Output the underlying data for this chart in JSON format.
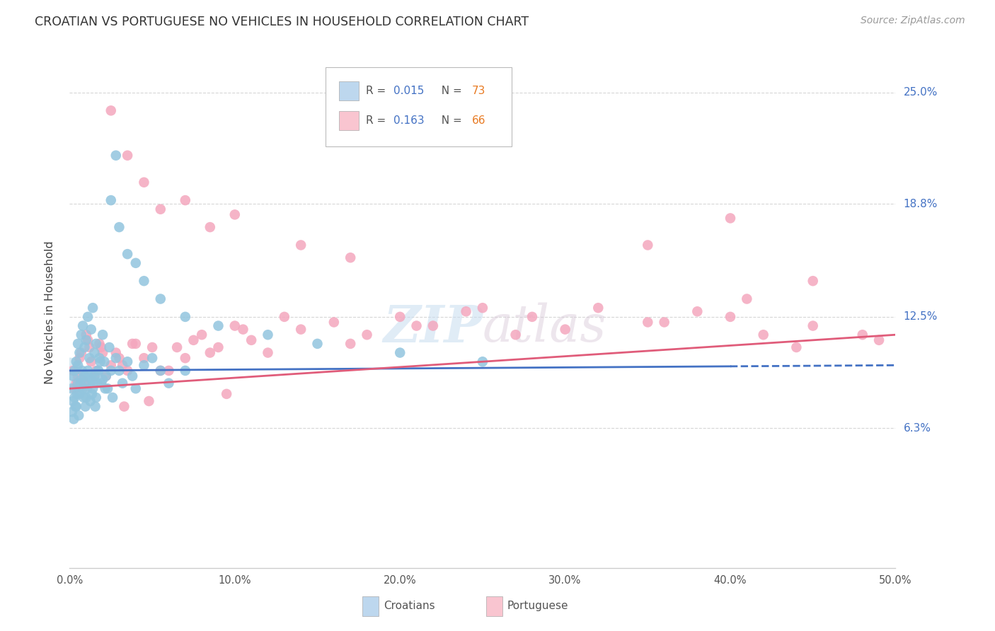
{
  "title": "CROATIAN VS PORTUGUESE NO VEHICLES IN HOUSEHOLD CORRELATION CHART",
  "source": "Source: ZipAtlas.com",
  "ylabel": "No Vehicles in Household",
  "ytick_labels": [
    "6.3%",
    "12.5%",
    "18.8%",
    "25.0%"
  ],
  "ytick_values": [
    6.3,
    12.5,
    18.8,
    25.0
  ],
  "xlim": [
    0.0,
    50.0
  ],
  "ylim": [
    -1.5,
    27.0
  ],
  "watermark": "ZIPatlas",
  "croatian_color": "#92C5DE",
  "portuguese_color": "#F4A7BE",
  "trend_croatian_color": "#4472C4",
  "trend_portuguese_color": "#E05C7A",
  "legend_box_blue": "#BDD7EE",
  "legend_box_pink": "#F9C5D0",
  "croatians_x": [
    0.1,
    0.2,
    0.2,
    0.3,
    0.3,
    0.4,
    0.4,
    0.5,
    0.5,
    0.5,
    0.6,
    0.6,
    0.7,
    0.7,
    0.8,
    0.8,
    0.9,
    0.9,
    1.0,
    1.0,
    1.1,
    1.1,
    1.2,
    1.2,
    1.3,
    1.3,
    1.4,
    1.4,
    1.5,
    1.5,
    1.6,
    1.6,
    1.7,
    1.8,
    1.9,
    2.0,
    2.0,
    2.1,
    2.2,
    2.3,
    2.4,
    2.5,
    2.6,
    2.8,
    3.0,
    3.2,
    3.5,
    3.8,
    4.0,
    4.5,
    5.0,
    5.5,
    6.0,
    7.0,
    0.15,
    0.25,
    0.35,
    0.45,
    0.55,
    0.65,
    0.75,
    0.85,
    0.95,
    1.05,
    1.15,
    1.25,
    1.35,
    1.45,
    1.55,
    1.65,
    1.75,
    1.85,
    2.15
  ],
  "croatians_y": [
    8.5,
    7.8,
    9.2,
    8.0,
    9.5,
    7.5,
    10.0,
    8.8,
    9.8,
    11.0,
    8.2,
    10.5,
    9.0,
    11.5,
    8.5,
    12.0,
    9.2,
    10.8,
    8.0,
    11.2,
    9.5,
    12.5,
    8.8,
    10.2,
    9.0,
    11.8,
    8.5,
    13.0,
    9.2,
    10.5,
    8.0,
    11.0,
    9.5,
    10.2,
    8.8,
    9.0,
    11.5,
    10.0,
    9.2,
    8.5,
    10.8,
    9.5,
    8.0,
    10.2,
    9.5,
    8.8,
    10.0,
    9.2,
    8.5,
    9.8,
    10.2,
    9.5,
    8.8,
    9.5,
    7.2,
    6.8,
    7.5,
    8.2,
    7.0,
    8.8,
    9.5,
    8.0,
    7.5,
    8.5,
    9.2,
    7.8,
    8.2,
    9.0,
    7.5,
    8.8,
    9.5,
    10.0,
    8.5
  ],
  "croatians_outliers_x": [
    2.8,
    2.5,
    3.0,
    3.5,
    4.0,
    4.5,
    5.5,
    7.0,
    9.0,
    12.0,
    15.0,
    20.0,
    25.0
  ],
  "croatians_outliers_y": [
    21.5,
    19.0,
    17.5,
    16.0,
    15.5,
    14.5,
    13.5,
    12.5,
    12.0,
    11.5,
    11.0,
    10.5,
    10.0
  ],
  "portuguese_x": [
    0.2,
    0.4,
    0.6,
    0.8,
    1.0,
    1.2,
    1.5,
    1.8,
    2.0,
    2.5,
    3.0,
    3.5,
    4.0,
    5.0,
    6.0,
    7.0,
    8.0,
    9.0,
    10.0,
    11.0,
    12.0,
    14.0,
    16.0,
    18.0,
    20.0,
    22.0,
    25.0,
    28.0,
    30.0,
    35.0,
    38.0,
    40.0,
    42.0,
    44.0,
    48.0,
    0.3,
    0.5,
    0.7,
    0.9,
    1.1,
    1.3,
    1.6,
    1.9,
    2.2,
    2.8,
    3.2,
    3.8,
    4.5,
    5.5,
    6.5,
    7.5,
    8.5,
    10.5,
    13.0,
    17.0,
    21.0,
    24.0,
    27.0,
    32.0,
    36.0,
    41.0,
    45.0,
    49.0,
    3.3,
    9.5,
    4.8
  ],
  "portuguese_y": [
    9.5,
    8.8,
    10.2,
    9.0,
    11.5,
    10.8,
    9.2,
    11.0,
    10.5,
    9.8,
    10.2,
    9.5,
    11.0,
    10.8,
    9.5,
    10.2,
    11.5,
    10.8,
    12.0,
    11.2,
    10.5,
    11.8,
    12.2,
    11.5,
    12.5,
    12.0,
    13.0,
    12.5,
    11.8,
    12.2,
    12.8,
    12.5,
    11.5,
    10.8,
    11.5,
    8.5,
    9.2,
    10.5,
    8.8,
    11.2,
    10.0,
    9.5,
    10.8,
    9.2,
    10.5,
    9.8,
    11.0,
    10.2,
    9.5,
    10.8,
    11.2,
    10.5,
    11.8,
    12.5,
    11.0,
    12.0,
    12.8,
    11.5,
    13.0,
    12.2,
    13.5,
    12.0,
    11.2,
    7.5,
    8.2,
    7.8
  ],
  "portuguese_outliers_x": [
    2.5,
    3.5,
    4.5,
    5.5,
    7.0,
    8.5,
    10.0,
    14.0,
    17.0,
    35.0,
    40.0,
    45.0
  ],
  "portuguese_outliers_y": [
    24.0,
    21.5,
    20.0,
    18.5,
    19.0,
    17.5,
    18.2,
    16.5,
    15.8,
    16.5,
    18.0,
    14.5
  ],
  "trend_cr_x0": 0.0,
  "trend_cr_x1": 50.0,
  "trend_cr_y0": 9.5,
  "trend_cr_y1": 9.8,
  "trend_cr_solid_end": 40.0,
  "trend_pt_x0": 0.0,
  "trend_pt_x1": 50.0,
  "trend_pt_y0": 8.5,
  "trend_pt_y1": 11.5
}
